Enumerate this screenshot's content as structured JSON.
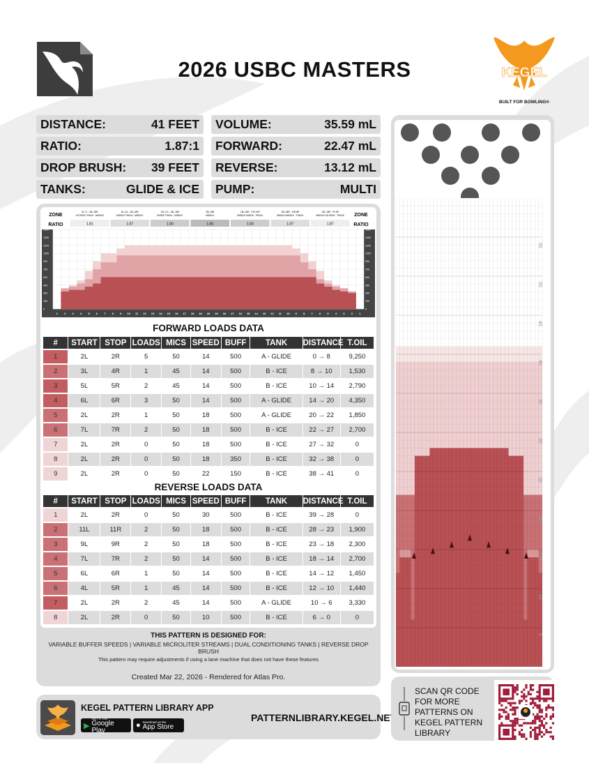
{
  "title": "2026 USBC MASTERS",
  "brand": {
    "kegel_text": "KEGEL",
    "tagline": "BUILT FOR BOWLING®",
    "accent_orange": "#f39a1e",
    "oil_color": "#b85054"
  },
  "specs": {
    "distance": {
      "label": "DISTANCE:",
      "value": "41 FEET"
    },
    "ratio": {
      "label": "RATIO:",
      "value": "1.87:1"
    },
    "drop_brush": {
      "label": "DROP BRUSH:",
      "value": "39 FEET"
    },
    "tanks": {
      "label": "TANKS:",
      "value": "GLIDE & ICE"
    },
    "volume": {
      "label": "VOLUME:",
      "value": "35.59 mL"
    },
    "forward": {
      "label": "FORWARD:",
      "value": "22.47 mL"
    },
    "reverse": {
      "label": "REVERSE:",
      "value": "13.12 mL"
    },
    "pump": {
      "label": "PUMP:",
      "value": "MULTI"
    }
  },
  "zones": {
    "label_zone": "ZONE",
    "label_ratio": "RATIO",
    "items": [
      {
        "boards": "3L-7L : 18L-18R",
        "name": "OUTSIDE TRACK : MIDDLE",
        "ratio": "1.81"
      },
      {
        "boards": "8L-12L : 18L-18R",
        "name": "MIDDLE TRACK : MIDDLE",
        "ratio": "1.07"
      },
      {
        "boards": "13L-17L : 18L-18R",
        "name": "INSIDE TRACK : MIDDLE",
        "ratio": "1.00"
      },
      {
        "boards": "18L-18R",
        "name": "MIDDLE",
        "ratio": "1.00"
      },
      {
        "boards": "18L-18R : 17R-13R",
        "name": "MIDDLE:INSIDE : TRACK",
        "ratio": "1.00"
      },
      {
        "boards": "18L-18R : 12R-8R",
        "name": "MIDDLE:MIDDLE : TRACK",
        "ratio": "1.07"
      },
      {
        "boards": "18L-18R : 7R-3R",
        "name": "MIDDLE:OUTSIDE : TRACK",
        "ratio": "1.87"
      }
    ]
  },
  "chart_data": {
    "type": "area",
    "x": [
      "1",
      "2",
      "3",
      "4",
      "5",
      "6",
      "7",
      "8",
      "9",
      "10",
      "11",
      "12",
      "13",
      "14",
      "15",
      "16",
      "17",
      "18",
      "19",
      "20",
      "19",
      "18",
      "17",
      "16",
      "15",
      "14",
      "13",
      "12",
      "11",
      "10",
      "9",
      "8",
      "7",
      "6",
      "5",
      "4",
      "3",
      "2",
      "1"
    ],
    "yticks": [
      "1500",
      "1350",
      "1200",
      "1050",
      "900",
      "750",
      "600",
      "450",
      "300",
      "150",
      "0"
    ],
    "ylim": [
      0,
      1500
    ],
    "series": [
      {
        "values": [
          0,
          330,
          360,
          360,
          420,
          480,
          600,
          600,
          600,
          600,
          600,
          600,
          600,
          600,
          600,
          600,
          600,
          600,
          600,
          600,
          600,
          600,
          600,
          600,
          600,
          600,
          600,
          600,
          600,
          600,
          600,
          600,
          600,
          480,
          420,
          360,
          330,
          300,
          0
        ]
      },
      {
        "values": [
          0,
          390,
          420,
          480,
          560,
          750,
          880,
          880,
          1010,
          1010,
          1010,
          1010,
          1010,
          1010,
          1010,
          1010,
          1010,
          1010,
          1010,
          1010,
          1010,
          1010,
          1010,
          1010,
          1010,
          1010,
          1010,
          1010,
          1010,
          1010,
          1010,
          880,
          750,
          560,
          480,
          420,
          390,
          330,
          0
        ]
      },
      {
        "values": [
          0,
          390,
          450,
          540,
          720,
          900,
          1050,
          1050,
          1140,
          1200,
          1200,
          1200,
          1200,
          1200,
          1200,
          1200,
          1200,
          1200,
          1200,
          1200,
          1200,
          1200,
          1200,
          1200,
          1200,
          1200,
          1200,
          1200,
          1200,
          1200,
          1140,
          1050,
          900,
          720,
          540,
          450,
          390,
          330,
          0
        ]
      }
    ]
  },
  "forward": {
    "title": "FORWARD LOADS DATA",
    "headers": [
      "#",
      "START",
      "STOP",
      "LOADS",
      "MICS",
      "SPEED",
      "BUFF",
      "TANK",
      "DISTANCE",
      "T.OIL"
    ],
    "rows": [
      {
        "n": "1",
        "start": "2L",
        "stop": "2R",
        "loads": "5",
        "mics": "50",
        "speed": "14",
        "buff": "500",
        "tank": "A - GLIDE",
        "distance": "0 → 8",
        "toil": "9,250",
        "color": "#c25d60"
      },
      {
        "n": "2",
        "start": "3L",
        "stop": "4R",
        "loads": "1",
        "mics": "45",
        "speed": "14",
        "buff": "500",
        "tank": "B - ICE",
        "distance": "8 → 10",
        "toil": "1,530",
        "color": "#c97174"
      },
      {
        "n": "3",
        "start": "5L",
        "stop": "5R",
        "loads": "2",
        "mics": "45",
        "speed": "14",
        "buff": "500",
        "tank": "B - ICE",
        "distance": "10 → 14",
        "toil": "2,790",
        "color": "#c25d60"
      },
      {
        "n": "4",
        "start": "6L",
        "stop": "6R",
        "loads": "3",
        "mics": "50",
        "speed": "14",
        "buff": "500",
        "tank": "A - GLIDE",
        "distance": "14 → 20",
        "toil": "4,350",
        "color": "#c25d60"
      },
      {
        "n": "5",
        "start": "2L",
        "stop": "2R",
        "loads": "1",
        "mics": "50",
        "speed": "18",
        "buff": "500",
        "tank": "A - GLIDE",
        "distance": "20 → 22",
        "toil": "1,850",
        "color": "#c97174"
      },
      {
        "n": "6",
        "start": "7L",
        "stop": "7R",
        "loads": "2",
        "mics": "50",
        "speed": "18",
        "buff": "500",
        "tank": "B - ICE",
        "distance": "22 → 27",
        "toil": "2,700",
        "color": "#c97174"
      },
      {
        "n": "7",
        "start": "2L",
        "stop": "2R",
        "loads": "0",
        "mics": "50",
        "speed": "18",
        "buff": "500",
        "tank": "B - ICE",
        "distance": "27 → 32",
        "toil": "0",
        "color": "#f0d5d6"
      },
      {
        "n": "8",
        "start": "2L",
        "stop": "2R",
        "loads": "0",
        "mics": "50",
        "speed": "18",
        "buff": "350",
        "tank": "B - ICE",
        "distance": "32 → 38",
        "toil": "0",
        "color": "#f0d5d6"
      },
      {
        "n": "9",
        "start": "2L",
        "stop": "2R",
        "loads": "0",
        "mics": "50",
        "speed": "22",
        "buff": "150",
        "tank": "B - ICE",
        "distance": "38 → 41",
        "toil": "0",
        "color": "#f0d5d6"
      }
    ]
  },
  "reverse": {
    "title": "REVERSE LOADS DATA",
    "headers": [
      "#",
      "START",
      "STOP",
      "LOADS",
      "MICS",
      "SPEED",
      "BUFF",
      "TANK",
      "DISTANCE",
      "T.OIL"
    ],
    "rows": [
      {
        "n": "1",
        "start": "2L",
        "stop": "2R",
        "loads": "0",
        "mics": "50",
        "speed": "30",
        "buff": "500",
        "tank": "B - ICE",
        "distance": "39 → 28",
        "toil": "0",
        "color": "#f0d5d6"
      },
      {
        "n": "2",
        "start": "11L",
        "stop": "11R",
        "loads": "2",
        "mics": "50",
        "speed": "18",
        "buff": "500",
        "tank": "B - ICE",
        "distance": "28 → 23",
        "toil": "1,900",
        "color": "#c97174"
      },
      {
        "n": "3",
        "start": "9L",
        "stop": "9R",
        "loads": "2",
        "mics": "50",
        "speed": "18",
        "buff": "500",
        "tank": "B - ICE",
        "distance": "23 → 18",
        "toil": "2,300",
        "color": "#c97174"
      },
      {
        "n": "4",
        "start": "7L",
        "stop": "7R",
        "loads": "2",
        "mics": "50",
        "speed": "14",
        "buff": "500",
        "tank": "B - ICE",
        "distance": "18 → 14",
        "toil": "2,700",
        "color": "#c97174"
      },
      {
        "n": "5",
        "start": "6L",
        "stop": "6R",
        "loads": "1",
        "mics": "50",
        "speed": "14",
        "buff": "500",
        "tank": "B - ICE",
        "distance": "14 → 12",
        "toil": "1,450",
        "color": "#c97174"
      },
      {
        "n": "6",
        "start": "4L",
        "stop": "5R",
        "loads": "1",
        "mics": "45",
        "speed": "14",
        "buff": "500",
        "tank": "B - ICE",
        "distance": "12 → 10",
        "toil": "1,440",
        "color": "#c97174"
      },
      {
        "n": "7",
        "start": "2L",
        "stop": "2R",
        "loads": "2",
        "mics": "45",
        "speed": "14",
        "buff": "500",
        "tank": "A - GLIDE",
        "distance": "10 → 6",
        "toil": "3,330",
        "color": "#c25d60"
      },
      {
        "n": "8",
        "start": "2L",
        "stop": "2R",
        "loads": "0",
        "mics": "50",
        "speed": "10",
        "buff": "500",
        "tank": "B - ICE",
        "distance": "6 → 0",
        "toil": "0",
        "color": "#f0d5d6"
      }
    ]
  },
  "designed": {
    "heading": "THIS PATTERN IS DESIGNED FOR:",
    "features": "VARIABLE BUFFER SPEEDS | VARIABLE MICROLITER STREAMS | DUAL CONDITIONING TANKS | REVERSE DROP BRUSH",
    "note": "This pattern may require adjustments if using a lane machine that does not have these features"
  },
  "created": "Created Mar 22, 2026 - Rendered for Atlas Pro.",
  "app": {
    "title": "KEGEL PATTERN LIBRARY APP",
    "google_small": "GET IT ON",
    "google_large": "Google Play",
    "apple_small": "Download on the",
    "apple_large": "App Store",
    "website": "PATTERNLIBRARY.KEGEL.NET"
  },
  "qr": {
    "text": "SCAN QR CODE FOR MORE PATTERNS ON KEGEL PATTERN LIBRARY"
  },
  "lane": {
    "distance_labels": [
      "55",
      "50",
      "45",
      "40",
      "35",
      "30",
      "25",
      "20",
      "15",
      "10",
      "5"
    ]
  }
}
